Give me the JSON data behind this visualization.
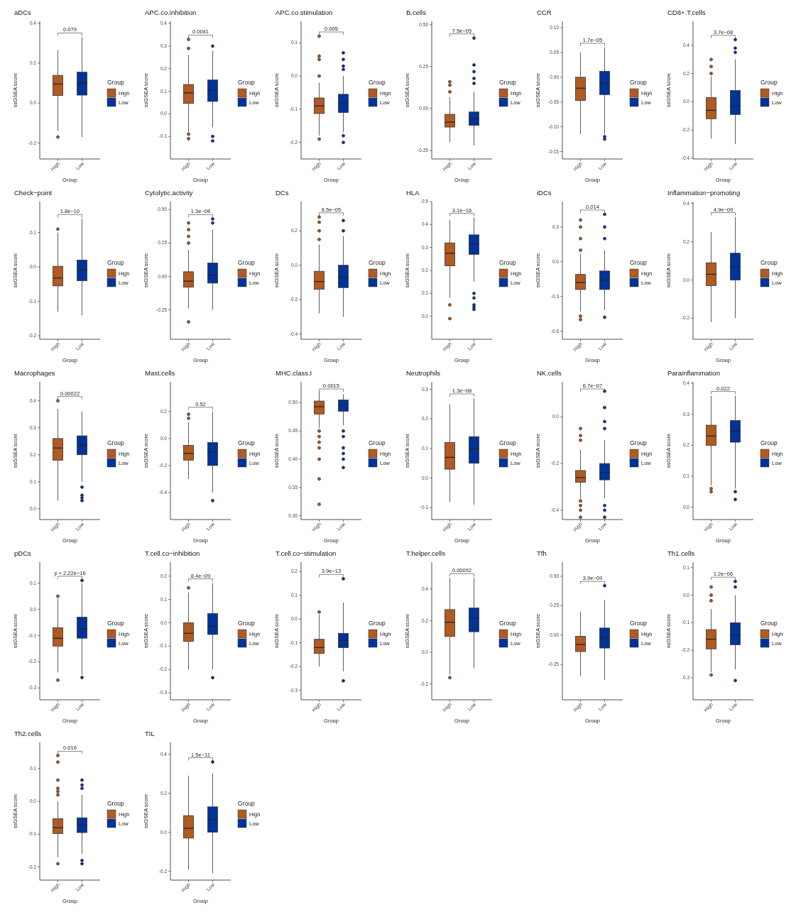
{
  "chart_data": [
    {
      "type": "box",
      "title": "aDCs",
      "xlabel": "Group",
      "ylabel": "ssGSEA score",
      "categories": [
        "High",
        "Low"
      ],
      "legend": "right",
      "legend_title": "Group",
      "annotations": [
        "0.079"
      ],
      "ylim": [
        -0.28,
        0.41
      ],
      "yticks": [
        -0.2,
        {
          "value": 0,
          "label": "0.0"
        },
        0.2,
        0.4
      ],
      "series": [
        {
          "name": "High",
          "color": "#b15a22",
          "boxes": [
            {
              "low": -0.14,
              "q1": 0.038,
              "median": 0.096,
              "q3": 0.139,
              "high": 0.265,
              "outliers": [
                -0.17
              ]
            },
            null
          ]
        },
        {
          "name": "Low",
          "color": "#023399",
          "boxes": [
            null,
            {
              "low": -0.17,
              "q1": 0.04,
              "median": 0.1,
              "q3": 0.155,
              "high": 0.33
            }
          ]
        }
      ]
    },
    {
      "type": "box",
      "title": "APC.co.inhibition",
      "xlabel": "Group",
      "ylabel": "ssGSEA score",
      "categories": [
        "High",
        "Low"
      ],
      "legend": "right",
      "legend_title": "Group",
      "annotations": [
        "0.0041"
      ],
      "ylim": [
        -0.2,
        0.41
      ],
      "yticks": [
        -0.1,
        {
          "value": 0,
          "label": "0.0"
        },
        0.1,
        0.2,
        0.3,
        0.4
      ],
      "series": [
        {
          "name": "High",
          "color": "#b15a22",
          "boxes": [
            {
              "low": -0.08,
              "q1": 0.046,
              "median": 0.093,
              "q3": 0.13,
              "high": 0.26,
              "outliers": [
                0.29,
                0.33,
                -0.09,
                -0.11
              ]
            },
            null
          ]
        },
        {
          "name": "Low",
          "color": "#023399",
          "boxes": [
            null,
            {
              "low": -0.06,
              "q1": 0.055,
              "median": 0.105,
              "q3": 0.15,
              "high": 0.28,
              "outliers": [
                0.3,
                -0.1,
                -0.12
              ]
            }
          ]
        }
      ]
    },
    {
      "type": "box",
      "title": "APC.co.stimulation",
      "xlabel": "Group",
      "ylabel": "ssGSEA score",
      "categories": [
        "High",
        "Low"
      ],
      "legend": "right",
      "legend_title": "Group",
      "annotations": [
        "0.005"
      ],
      "ylim": [
        -0.25,
        0.165
      ],
      "yticks": [
        -0.2,
        -0.1,
        {
          "value": 0,
          "label": "0.0"
        },
        0.1
      ],
      "series": [
        {
          "name": "High",
          "color": "#b15a22",
          "boxes": [
            {
              "low": -0.18,
              "q1": -0.113,
              "median": -0.09,
              "q3": -0.066,
              "high": -0.02,
              "outliers": [
                0.12,
                0.06,
                0.05,
                0.0,
                -0.19
              ]
            },
            null
          ]
        },
        {
          "name": "Low",
          "color": "#023399",
          "boxes": [
            null,
            {
              "low": -0.17,
              "q1": -0.11,
              "median": -0.08,
              "q3": -0.055,
              "high": 0.0,
              "outliers": [
                0.07,
                0.05,
                0.03,
                0.02,
                -0.18,
                -0.2
              ]
            }
          ]
        }
      ]
    },
    {
      "type": "box",
      "title": "B.cells",
      "xlabel": "Group",
      "ylabel": "ssGSEA score",
      "categories": [
        "High",
        "Low"
      ],
      "legend": "right",
      "legend_title": "Group",
      "annotations": [
        "7.5e−05"
      ],
      "ylim": [
        -0.3,
        0.52
      ],
      "yticks": [
        -0.25,
        {
          "value": 0,
          "label": "0.00"
        },
        0.25,
        {
          "value": 0.5,
          "label": "0.50"
        }
      ],
      "series": [
        {
          "name": "High",
          "color": "#b15a22",
          "boxes": [
            {
              "low": -0.2,
              "q1": -0.11,
              "median": -0.08,
              "q3": -0.034,
              "high": 0.07,
              "outliers": [
                0.16,
                0.14,
                0.1
              ]
            },
            null
          ]
        },
        {
          "name": "Low",
          "color": "#023399",
          "boxes": [
            null,
            {
              "low": -0.22,
              "q1": -0.1,
              "median": -0.06,
              "q3": -0.02,
              "high": 0.1,
              "outliers": [
                0.42,
                0.26,
                0.22,
                0.18,
                0.15
              ]
            }
          ]
        }
      ]
    },
    {
      "type": "box",
      "title": "CCR",
      "xlabel": "Group",
      "ylabel": "ssGSEA score",
      "categories": [
        "High",
        "Low"
      ],
      "legend": "right",
      "legend_title": "Group",
      "annotations": [
        "1.7e−05"
      ],
      "ylim": [
        -0.165,
        0.113
      ],
      "yticks": [
        -0.15,
        {
          "value": -0.1,
          "label": "-0.10"
        },
        -0.05,
        {
          "value": 0,
          "label": "0.00"
        },
        0.05,
        {
          "value": 0.1,
          "label": "0.10"
        }
      ],
      "series": [
        {
          "name": "High",
          "color": "#b15a22",
          "boxes": [
            {
              "low": -0.115,
              "q1": -0.047,
              "median": -0.022,
              "q3": 0.0,
              "high": 0.05
            },
            null
          ]
        },
        {
          "name": "Low",
          "color": "#023399",
          "boxes": [
            null,
            {
              "low": -0.115,
              "q1": -0.035,
              "median": -0.012,
              "q3": 0.012,
              "high": 0.06,
              "outliers": [
                -0.12,
                -0.125
              ]
            }
          ]
        }
      ]
    },
    {
      "type": "box",
      "title": "CD8+.T.cells",
      "xlabel": "Group",
      "ylabel": "ssGSEA score",
      "categories": [
        "High",
        "Low"
      ],
      "legend": "right",
      "legend_title": "Group",
      "annotations": [
        "3.7e−08"
      ],
      "ylim": [
        -0.405,
        0.57
      ],
      "yticks": [
        -0.4,
        -0.2,
        {
          "value": 0,
          "label": "0.0"
        },
        0.2,
        0.4
      ],
      "series": [
        {
          "name": "High",
          "color": "#b15a22",
          "boxes": [
            {
              "low": -0.26,
              "q1": -0.12,
              "median": -0.06,
              "q3": 0.03,
              "high": 0.18,
              "outliers": [
                0.2,
                0.25,
                0.3
              ]
            },
            null
          ]
        },
        {
          "name": "Low",
          "color": "#023399",
          "boxes": [
            null,
            {
              "low": -0.3,
              "q1": -0.09,
              "median": -0.03,
              "q3": 0.08,
              "high": 0.3,
              "outliers": [
                0.35,
                0.38,
                0.44
              ]
            }
          ]
        }
      ]
    },
    {
      "type": "box",
      "title": "Check−point",
      "xlabel": "Group",
      "ylabel": "ssGSEA score",
      "categories": [
        "High",
        "Low"
      ],
      "legend": "right",
      "legend_title": "Group",
      "annotations": [
        "1.8e−10"
      ],
      "ylim": [
        -0.21,
        0.19
      ],
      "yticks": [
        -0.2,
        -0.1,
        {
          "value": 0,
          "label": "0.0"
        },
        0.1
      ],
      "series": [
        {
          "name": "High",
          "color": "#b15a22",
          "boxes": [
            {
              "low": -0.13,
              "q1": -0.055,
              "median": -0.032,
              "q3": 0.002,
              "high": 0.1,
              "outliers": [
                0.11
              ]
            },
            null
          ]
        },
        {
          "name": "Low",
          "color": "#023399",
          "boxes": [
            null,
            {
              "low": -0.14,
              "q1": -0.04,
              "median": -0.008,
              "q3": 0.02,
              "high": 0.14
            }
          ]
        }
      ]
    },
    {
      "type": "box",
      "title": "Cytolytic.activity",
      "xlabel": "Group",
      "ylabel": "ssGSEA score",
      "categories": [
        "High",
        "Low"
      ],
      "legend": "right",
      "legend_title": "Group",
      "annotations": [
        "1.3e−08"
      ],
      "ylim": [
        -0.47,
        0.56
      ],
      "yticks": [
        -0.25,
        {
          "value": 0,
          "label": "0.00"
        },
        0.25,
        {
          "value": 0.5,
          "label": "0.50"
        }
      ],
      "series": [
        {
          "name": "High",
          "color": "#b15a22",
          "boxes": [
            {
              "low": -0.24,
              "q1": -0.08,
              "median": -0.035,
              "q3": 0.035,
              "high": 0.2,
              "outliers": [
                0.25,
                0.3,
                0.35,
                0.4,
                -0.34
              ]
            },
            null
          ]
        },
        {
          "name": "Low",
          "color": "#023399",
          "boxes": [
            null,
            {
              "low": -0.25,
              "q1": -0.05,
              "median": 0.01,
              "q3": 0.1,
              "high": 0.35,
              "outliers": [
                0.4,
                0.43
              ]
            }
          ]
        }
      ]
    },
    {
      "type": "box",
      "title": "DCs",
      "xlabel": "Group",
      "ylabel": "ssGSEA score",
      "categories": [
        "High",
        "Low"
      ],
      "legend": "right",
      "legend_title": "Group",
      "annotations": [
        "8.5e−05"
      ],
      "ylim": [
        -0.43,
        0.37
      ],
      "yticks": [
        -0.4,
        -0.2,
        {
          "value": 0,
          "label": "0.0"
        },
        0.2
      ],
      "series": [
        {
          "name": "High",
          "color": "#b15a22",
          "boxes": [
            {
              "low": -0.28,
              "q1": -0.14,
              "median": -0.095,
              "q3": -0.035,
              "high": 0.12,
              "outliers": [
                0.15,
                0.2,
                0.25,
                0.28
              ]
            },
            null
          ]
        },
        {
          "name": "Low",
          "color": "#023399",
          "boxes": [
            null,
            {
              "low": -0.3,
              "q1": -0.13,
              "median": -0.07,
              "q3": 0.0,
              "high": 0.17,
              "outliers": [
                0.2,
                0.26
              ]
            }
          ]
        }
      ]
    },
    {
      "type": "box",
      "title": "HLA",
      "xlabel": "Group",
      "ylabel": "ssGSEA score",
      "categories": [
        "High",
        "Low"
      ],
      "legend": "right",
      "legend_title": "Group",
      "annotations": [
        "3.1e−16"
      ],
      "ylim": [
        -0.1,
        0.5
      ],
      "yticks": [
        {
          "value": 0,
          "label": "0.0"
        },
        0.1,
        0.2,
        0.3,
        0.4,
        0.5
      ],
      "series": [
        {
          "name": "High",
          "color": "#b15a22",
          "boxes": [
            {
              "low": 0.08,
              "q1": 0.22,
              "median": 0.275,
              "q3": 0.32,
              "high": 0.42,
              "outliers": [
                0.05,
                -0.01
              ]
            },
            null
          ]
        },
        {
          "name": "Low",
          "color": "#023399",
          "boxes": [
            null,
            {
              "low": 0.15,
              "q1": 0.27,
              "median": 0.315,
              "q3": 0.355,
              "high": 0.43,
              "outliers": [
                0.1,
                0.08,
                0.05,
                0.04,
                0.03
              ]
            }
          ]
        }
      ]
    },
    {
      "type": "box",
      "title": "iDCs",
      "xlabel": "Group",
      "ylabel": "ssGSEA score",
      "categories": [
        "High",
        "Low"
      ],
      "legend": "right",
      "legend_title": "Group",
      "annotations": [
        "0.014"
      ],
      "ylim": [
        -0.67,
        0.52
      ],
      "yticks": [
        -0.6,
        -0.3,
        {
          "value": 0,
          "label": "0.0"
        },
        0.3
      ],
      "series": [
        {
          "name": "High",
          "color": "#b15a22",
          "boxes": [
            {
              "low": -0.43,
              "q1": -0.24,
              "median": -0.18,
              "q3": -0.11,
              "high": 0.07,
              "outliers": [
                0.1,
                0.2,
                0.3,
                0.36,
                -0.47,
                -0.5
              ]
            },
            null
          ]
        },
        {
          "name": "Low",
          "color": "#023399",
          "boxes": [
            null,
            {
              "low": -0.42,
              "q1": -0.24,
              "median": -0.16,
              "q3": -0.08,
              "high": 0.1,
              "outliers": [
                0.2,
                0.3,
                0.41,
                -0.48
              ]
            }
          ]
        }
      ]
    },
    {
      "type": "box",
      "title": "Inflammation−promoting",
      "xlabel": "Group",
      "ylabel": "ssGSEA score",
      "categories": [
        "High",
        "Low"
      ],
      "legend": "right",
      "legend_title": "Group",
      "annotations": [
        "4.9e−09"
      ],
      "ylim": [
        -0.31,
        0.41
      ],
      "yticks": [
        -0.2,
        {
          "value": 0,
          "label": "0.0"
        },
        0.2,
        0.4
      ],
      "series": [
        {
          "name": "High",
          "color": "#b15a22",
          "boxes": [
            {
              "low": -0.22,
              "q1": -0.03,
              "median": 0.03,
              "q3": 0.09,
              "high": 0.25
            },
            null
          ]
        },
        {
          "name": "Low",
          "color": "#023399",
          "boxes": [
            null,
            {
              "low": -0.2,
              "q1": 0.0,
              "median": 0.07,
              "q3": 0.14,
              "high": 0.33
            }
          ]
        }
      ]
    },
    {
      "type": "box",
      "title": "Macrophages",
      "xlabel": "Group",
      "ylabel": "ssGSEA score",
      "categories": [
        "High",
        "Low"
      ],
      "legend": "right",
      "legend_title": "Group",
      "annotations": [
        "0.00022"
      ],
      "ylim": [
        -0.04,
        0.47
      ],
      "yticks": [
        {
          "value": 0,
          "label": "0.0"
        },
        0.1,
        0.2,
        0.3,
        0.4
      ],
      "series": [
        {
          "name": "High",
          "color": "#b15a22",
          "boxes": [
            {
              "low": 0.03,
              "q1": 0.18,
              "median": 0.225,
              "q3": 0.26,
              "high": 0.37,
              "outliers": [
                0.4
              ]
            },
            null
          ]
        },
        {
          "name": "Low",
          "color": "#023399",
          "boxes": [
            null,
            {
              "low": 0.1,
              "q1": 0.2,
              "median": 0.235,
              "q3": 0.27,
              "high": 0.36,
              "outliers": [
                0.08,
                0.05,
                0.04,
                0.03
              ]
            }
          ]
        }
      ]
    },
    {
      "type": "box",
      "title": "Mast.cells",
      "xlabel": "Group",
      "ylabel": "ssGSEA score",
      "categories": [
        "High",
        "Low"
      ],
      "legend": "right",
      "legend_title": "Group",
      "annotations": [
        "0.52"
      ],
      "ylim": [
        -0.6,
        0.42
      ],
      "yticks": [
        -0.4,
        -0.2,
        {
          "value": 0,
          "label": "0.0"
        },
        0.2
      ],
      "series": [
        {
          "name": "High",
          "color": "#b15a22",
          "boxes": [
            {
              "low": -0.3,
              "q1": -0.16,
              "median": -0.11,
              "q3": -0.05,
              "high": 0.12,
              "outliers": [
                0.18,
                0.15
              ]
            },
            null
          ]
        },
        {
          "name": "Low",
          "color": "#023399",
          "boxes": [
            null,
            {
              "low": -0.4,
              "q1": -0.2,
              "median": -0.1,
              "q3": -0.03,
              "high": 0.2,
              "outliers": [
                -0.46
              ]
            }
          ]
        }
      ]
    },
    {
      "type": "box",
      "title": "MHC.class.I",
      "xlabel": "Group",
      "ylabel": "ssGSEA score",
      "categories": [
        "High",
        "Low"
      ],
      "legend": "right",
      "legend_title": "Group",
      "annotations": [
        "0.0015"
      ],
      "ylim": [
        0.293,
        0.537
      ],
      "yticks": [
        {
          "value": 0.3,
          "label": "0.30"
        },
        0.35,
        {
          "value": 0.4,
          "label": "0.40"
        },
        0.45,
        {
          "value": 0.5,
          "label": "0.50"
        }
      ],
      "series": [
        {
          "name": "High",
          "color": "#b15a22",
          "boxes": [
            {
              "low": 0.455,
              "q1": 0.48,
              "median": 0.493,
              "q3": 0.503,
              "high": 0.52,
              "outliers": [
                0.45,
                0.44,
                0.43,
                0.42,
                0.4,
                0.365,
                0.32
              ]
            },
            null
          ]
        },
        {
          "name": "Low",
          "color": "#023399",
          "boxes": [
            null,
            {
              "low": 0.46,
              "q1": 0.485,
              "median": 0.497,
              "q3": 0.505,
              "high": 0.515,
              "outliers": [
                0.45,
                0.44,
                0.42,
                0.41,
                0.4,
                0.385
              ]
            }
          ]
        }
      ]
    },
    {
      "type": "box",
      "title": "Neutrophils",
      "xlabel": "Group",
      "ylabel": "ssGSEA score",
      "categories": [
        "High",
        "Low"
      ],
      "legend": "right",
      "legend_title": "Group",
      "annotations": [
        "1.3e−08"
      ],
      "ylim": [
        -0.14,
        0.325
      ],
      "yticks": [
        -0.1,
        {
          "value": 0,
          "label": "0.0"
        },
        0.1,
        0.2,
        0.3
      ],
      "series": [
        {
          "name": "High",
          "color": "#b15a22",
          "boxes": [
            {
              "low": -0.08,
              "q1": 0.03,
              "median": 0.07,
              "q3": 0.12,
              "high": 0.25
            },
            null
          ]
        },
        {
          "name": "Low",
          "color": "#023399",
          "boxes": [
            null,
            {
              "low": -0.09,
              "q1": 0.05,
              "median": 0.1,
              "q3": 0.14,
              "high": 0.27
            }
          ]
        }
      ]
    },
    {
      "type": "box",
      "title": "NK.cells",
      "xlabel": "Group",
      "ylabel": "ssGSEA score",
      "categories": [
        "High",
        "Low"
      ],
      "legend": "right",
      "legend_title": "Group",
      "annotations": [
        "6.7e−07"
      ],
      "ylim": [
        -0.44,
        0.15
      ],
      "yticks": [
        -0.4,
        -0.2,
        {
          "value": 0,
          "label": "0.0"
        }
      ],
      "series": [
        {
          "name": "High",
          "color": "#b15a22",
          "boxes": [
            {
              "low": -0.35,
              "q1": -0.28,
              "median": -0.26,
              "q3": -0.23,
              "high": -0.14,
              "outliers": [
                -0.05,
                -0.08,
                -0.1,
                -0.36,
                -0.38,
                -0.4,
                -0.43
              ]
            },
            null
          ]
        },
        {
          "name": "Low",
          "color": "#023399",
          "boxes": [
            null,
            {
              "low": -0.35,
              "q1": -0.27,
              "median": -0.24,
              "q3": -0.2,
              "high": -0.1,
              "outliers": [
                -0.05,
                -0.02,
                0.04,
                0.11,
                -0.38,
                -0.4,
                -0.43
              ]
            }
          ]
        }
      ]
    },
    {
      "type": "box",
      "title": "Parainflammation",
      "xlabel": "Group",
      "ylabel": "ssGSEA score",
      "categories": [
        "High",
        "Low"
      ],
      "legend": "right",
      "legend_title": "Group",
      "annotations": [
        "0.022"
      ],
      "ylim": [
        -0.04,
        0.405
      ],
      "yticks": [
        {
          "value": 0,
          "label": "0.0"
        },
        0.1,
        0.2,
        0.3,
        0.4
      ],
      "series": [
        {
          "name": "High",
          "color": "#b15a22",
          "boxes": [
            {
              "low": 0.07,
              "q1": 0.2,
              "median": 0.23,
              "q3": 0.265,
              "high": 0.36,
              "outliers": [
                0.06,
                0.05
              ]
            },
            null
          ]
        },
        {
          "name": "Low",
          "color": "#023399",
          "boxes": [
            null,
            {
              "low": 0.06,
              "q1": 0.21,
              "median": 0.245,
              "q3": 0.28,
              "high": 0.36,
              "outliers": [
                0.05,
                0.025
              ]
            }
          ]
        }
      ]
    },
    {
      "type": "box",
      "title": "pDCs",
      "xlabel": "Group",
      "ylabel": "ssGSEA score",
      "categories": [
        "High",
        "Low"
      ],
      "legend": "right",
      "legend_title": "Group",
      "annotations": [
        "p < 2.22e−16"
      ],
      "ylim": [
        -0.345,
        0.18
      ],
      "yticks": [
        -0.3,
        -0.2,
        -0.1,
        {
          "value": 0,
          "label": "0.0"
        },
        0.1
      ],
      "series": [
        {
          "name": "High",
          "color": "#b15a22",
          "boxes": [
            {
              "low": -0.24,
              "q1": -0.14,
              "median": -0.11,
              "q3": -0.07,
              "high": 0.04,
              "outliers": [
                0.05,
                -0.27
              ]
            },
            null
          ]
        },
        {
          "name": "Low",
          "color": "#023399",
          "boxes": [
            null,
            {
              "low": -0.25,
              "q1": -0.11,
              "median": -0.075,
              "q3": -0.03,
              "high": 0.1,
              "outliers": [
                0.11,
                -0.26
              ]
            }
          ]
        }
      ]
    },
    {
      "type": "box",
      "title": "T.cell.co−inhibition",
      "xlabel": "Group",
      "ylabel": "ssGSEA score",
      "categories": [
        "High",
        "Low"
      ],
      "legend": "right",
      "legend_title": "Group",
      "annotations": [
        "8.4e−09"
      ],
      "ylim": [
        -0.33,
        0.26
      ],
      "yticks": [
        -0.3,
        -0.2,
        -0.1,
        {
          "value": 0,
          "label": "0.0"
        },
        0.1,
        0.2
      ],
      "series": [
        {
          "name": "High",
          "color": "#b15a22",
          "boxes": [
            {
              "low": -0.2,
              "q1": -0.08,
              "median": -0.045,
              "q3": 0.0,
              "high": 0.13,
              "outliers": [
                0.15
              ]
            },
            null
          ]
        },
        {
          "name": "Low",
          "color": "#023399",
          "boxes": [
            null,
            {
              "low": -0.2,
              "q1": -0.05,
              "median": -0.015,
              "q3": 0.04,
              "high": 0.17,
              "outliers": [
                -0.235
              ]
            }
          ]
        }
      ]
    },
    {
      "type": "box",
      "title": "T.cell.co−stimulation",
      "xlabel": "Group",
      "ylabel": "ssGSEA score",
      "categories": [
        "High",
        "Low"
      ],
      "legend": "right",
      "legend_title": "Group",
      "annotations": [
        "3.9e−13"
      ],
      "ylim": [
        -0.34,
        0.24
      ],
      "yticks": [
        -0.3,
        -0.2,
        -0.1,
        {
          "value": 0,
          "label": "0.0"
        },
        0.1,
        0.2
      ],
      "series": [
        {
          "name": "High",
          "color": "#b15a22",
          "boxes": [
            {
              "low": -0.2,
              "q1": -0.145,
              "median": -0.12,
              "q3": -0.085,
              "high": 0.02,
              "outliers": [
                0.03
              ]
            },
            null
          ]
        },
        {
          "name": "Low",
          "color": "#023399",
          "boxes": [
            null,
            {
              "low": -0.22,
              "q1": -0.12,
              "median": -0.09,
              "q3": -0.06,
              "high": 0.07,
              "outliers": [
                0.17,
                -0.26
              ]
            }
          ]
        }
      ]
    },
    {
      "type": "box",
      "title": "T.helper.cells",
      "xlabel": "Group",
      "ylabel": "ssGSEA score",
      "categories": [
        "High",
        "Low"
      ],
      "legend": "right",
      "legend_title": "Group",
      "annotations": [
        "0.00092"
      ],
      "ylim": [
        -0.3,
        0.57
      ],
      "yticks": [
        -0.2,
        {
          "value": 0,
          "label": "0.0"
        },
        0.2,
        0.4
      ],
      "series": [
        {
          "name": "High",
          "color": "#b15a22",
          "boxes": [
            {
              "low": -0.14,
              "q1": 0.1,
              "median": 0.19,
              "q3": 0.27,
              "high": 0.47,
              "outliers": [
                -0.16
              ]
            },
            null
          ]
        },
        {
          "name": "Low",
          "color": "#023399",
          "boxes": [
            null,
            {
              "low": -0.1,
              "q1": 0.13,
              "median": 0.215,
              "q3": 0.28,
              "high": 0.47
            }
          ]
        }
      ]
    },
    {
      "type": "box",
      "title": "Tfh",
      "xlabel": "Group",
      "ylabel": "ssGSEA score",
      "categories": [
        "High",
        "Low"
      ],
      "legend": "right",
      "legend_title": "Group",
      "annotations": [
        "3.9e−09"
      ],
      "ylim": [
        -0.55,
        0.62
      ],
      "yticks": [
        -0.25,
        {
          "value": 0,
          "label": "0.00"
        },
        0.25,
        {
          "value": 0.5,
          "label": "0.50"
        }
      ],
      "series": [
        {
          "name": "High",
          "color": "#b15a22",
          "boxes": [
            {
              "low": -0.35,
              "q1": -0.14,
              "median": -0.08,
              "q3": -0.01,
              "high": 0.2
            },
            null
          ]
        },
        {
          "name": "Low",
          "color": "#023399",
          "boxes": [
            null,
            {
              "low": -0.38,
              "q1": -0.11,
              "median": -0.02,
              "q3": 0.06,
              "high": 0.3,
              "outliers": [
                0.42
              ]
            }
          ]
        }
      ]
    },
    {
      "type": "box",
      "title": "Th1.cells",
      "xlabel": "Group",
      "ylabel": "ssGSEA score",
      "categories": [
        "High",
        "Low"
      ],
      "legend": "right",
      "legend_title": "Group",
      "annotations": [
        "1.2e−06"
      ],
      "ylim": [
        -0.38,
        0.12
      ],
      "yticks": [
        -0.3,
        -0.2,
        -0.1,
        {
          "value": 0,
          "label": "0.0"
        },
        0.1
      ],
      "series": [
        {
          "name": "High",
          "color": "#b15a22",
          "boxes": [
            {
              "low": -0.28,
              "q1": -0.195,
              "median": -0.16,
              "q3": -0.125,
              "high": -0.05,
              "outliers": [
                0.03,
                0.0,
                -0.02,
                -0.29
              ]
            },
            null
          ]
        },
        {
          "name": "Low",
          "color": "#023399",
          "boxes": [
            null,
            {
              "low": -0.27,
              "q1": -0.18,
              "median": -0.145,
              "q3": -0.1,
              "high": 0.0,
              "outliers": [
                0.05,
                0.03,
                -0.31
              ]
            }
          ]
        }
      ]
    },
    {
      "type": "box",
      "title": "Th2.cells",
      "xlabel": "Group",
      "ylabel": "ssGSEA score",
      "categories": [
        "High",
        "Low"
      ],
      "legend": "right",
      "legend_title": "Group",
      "annotations": [
        "0.016"
      ],
      "ylim": [
        -0.24,
        0.18
      ],
      "yticks": [
        -0.2,
        -0.1,
        {
          "value": 0,
          "label": "0.0"
        },
        0.1
      ],
      "series": [
        {
          "name": "High",
          "color": "#b15a22",
          "boxes": [
            {
              "low": -0.17,
              "q1": -0.098,
              "median": -0.08,
              "q3": -0.053,
              "high": 0.0,
              "outliers": [
                0.14,
                0.12,
                0.065,
                0.04,
                0.03,
                0.02,
                -0.19
              ]
            },
            null
          ]
        },
        {
          "name": "Low",
          "color": "#023399",
          "boxes": [
            null,
            {
              "low": -0.16,
              "q1": -0.095,
              "median": -0.073,
              "q3": -0.05,
              "high": 0.02,
              "outliers": [
                0.065,
                0.05,
                0.04,
                -0.18,
                -0.19
              ]
            }
          ]
        }
      ]
    },
    {
      "type": "box",
      "title": "TIL",
      "xlabel": "Group",
      "ylabel": "ssGSEA score",
      "categories": [
        "High",
        "Low"
      ],
      "legend": "right",
      "legend_title": "Group",
      "annotations": [
        "1.5e−11"
      ],
      "ylim": [
        -0.245,
        0.46
      ],
      "yticks": [
        -0.2,
        {
          "value": 0,
          "label": "0.0"
        },
        0.2,
        0.4
      ],
      "series": [
        {
          "name": "High",
          "color": "#b15a22",
          "boxes": [
            {
              "low": -0.19,
              "q1": -0.03,
              "median": 0.02,
              "q3": 0.085,
              "high": 0.29
            },
            null
          ]
        },
        {
          "name": "Low",
          "color": "#023399",
          "boxes": [
            null,
            {
              "low": -0.21,
              "q1": 0.0,
              "median": 0.065,
              "q3": 0.13,
              "high": 0.3,
              "outliers": [
                0.36
              ]
            }
          ]
        }
      ]
    }
  ]
}
